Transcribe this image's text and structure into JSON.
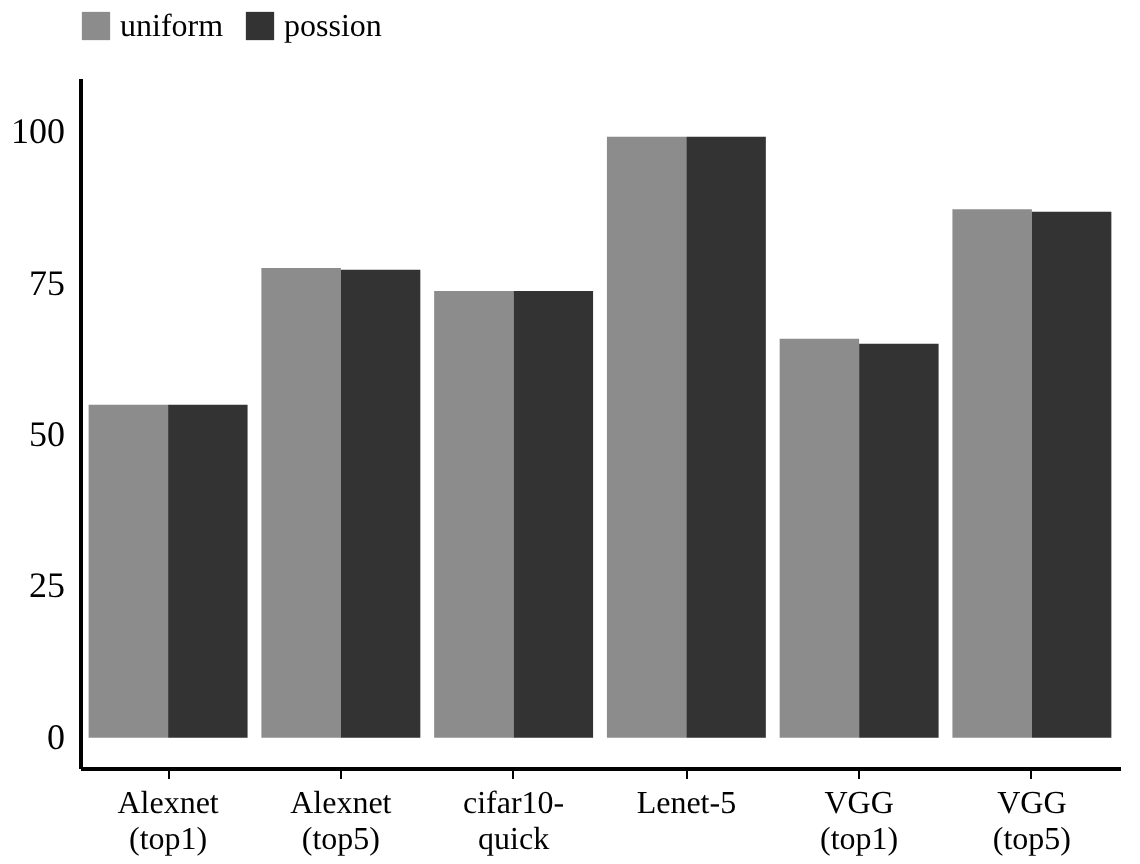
{
  "chart_data": {
    "type": "bar",
    "categories": [
      "Alexnet (top1)",
      "Alexnet (top5)",
      "cifar10-quick",
      "Lenet-5",
      "VGG (top1)",
      "VGG (top5)"
    ],
    "series": [
      {
        "name": "uniform",
        "color": "#8c8c8c",
        "values": [
          55,
          77.6,
          73.8,
          99.3,
          65.9,
          87.3
        ]
      },
      {
        "name": "possion",
        "color": "#333333",
        "values": [
          55,
          77.3,
          73.8,
          99.3,
          65.1,
          86.9
        ]
      }
    ],
    "ylim": [
      -5,
      109
    ],
    "yticks": [
      0,
      25,
      50,
      75,
      100
    ],
    "grid": false,
    "legend": "top"
  }
}
